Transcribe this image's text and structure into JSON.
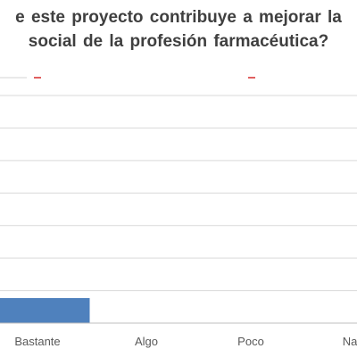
{
  "chart_data": {
    "type": "bar",
    "title_lines": [
      "e este proyecto contribuye a mejorar la",
      "social de la profesión farmacéutica?"
    ],
    "categories": [
      "Bastante",
      "Algo",
      "Poco",
      "Na"
    ],
    "values": [
      11,
      0,
      0,
      0
    ],
    "ylim": [
      0,
      100
    ],
    "grid": true,
    "legend": "top",
    "colors": {
      "bar": "#4f81bd",
      "grid": "#d9d9d9",
      "axis": "#bfbfbf",
      "label": "#595959",
      "legend_marks": [
        "#e9e9e9",
        "#e06060",
        "#e06060"
      ]
    }
  }
}
